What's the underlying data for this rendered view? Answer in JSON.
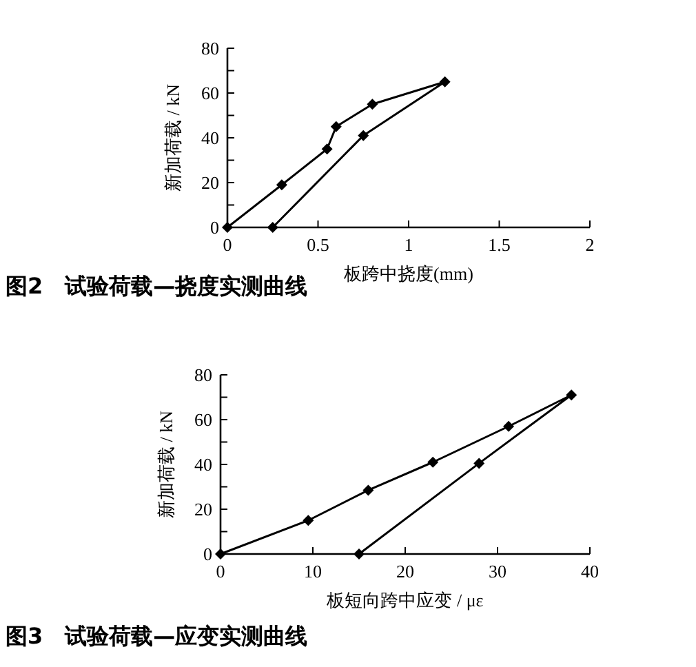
{
  "chart_data": [
    {
      "type": "line",
      "xlabel": "板跨中挠度(mm)",
      "ylabel": "新加荷载 / kN",
      "annotations": [
        "图2　试验荷载—挠度实测曲线"
      ],
      "marker": "diamond",
      "line_style": "solid",
      "grid": false,
      "xlim": [
        0,
        2
      ],
      "xticks": [
        0,
        0.5,
        1,
        1.5,
        2
      ],
      "ylim": [
        0,
        80
      ],
      "yticks": [
        0,
        {
          "value": 10,
          "label": null
        },
        20,
        {
          "value": 30,
          "label": null
        },
        40,
        {
          "value": 50,
          "label": null
        },
        60,
        {
          "value": 70,
          "label": null
        },
        80
      ],
      "series": [
        {
          "color": "#000000",
          "x": [
            0,
            0.3,
            0.55,
            0.6,
            0.8,
            1.2,
            0.75,
            0.25
          ],
          "values": [
            0,
            19,
            35,
            45,
            55,
            65,
            41,
            0
          ]
        }
      ]
    },
    {
      "type": "line",
      "xlabel": "板短向跨中应变 / με",
      "ylabel": "新加荷载 / kN",
      "annotations": [
        "图3　试验荷载—应变实测曲线"
      ],
      "marker": "diamond",
      "line_style": "solid",
      "grid": false,
      "xlim": [
        0,
        40
      ],
      "xticks": [
        0,
        10,
        20,
        30,
        40
      ],
      "ylim": [
        0,
        80
      ],
      "yticks": [
        0,
        {
          "value": 10,
          "label": null
        },
        20,
        {
          "value": 30,
          "label": null
        },
        40,
        {
          "value": 50,
          "label": null
        },
        60,
        {
          "value": 70,
          "label": null
        },
        80
      ],
      "series": [
        {
          "color": "#000000",
          "x": [
            0,
            9.5,
            16,
            23,
            31.2,
            38,
            28,
            15
          ],
          "values": [
            0,
            15,
            28.5,
            41,
            57,
            71,
            40.5,
            0
          ]
        }
      ]
    }
  ]
}
